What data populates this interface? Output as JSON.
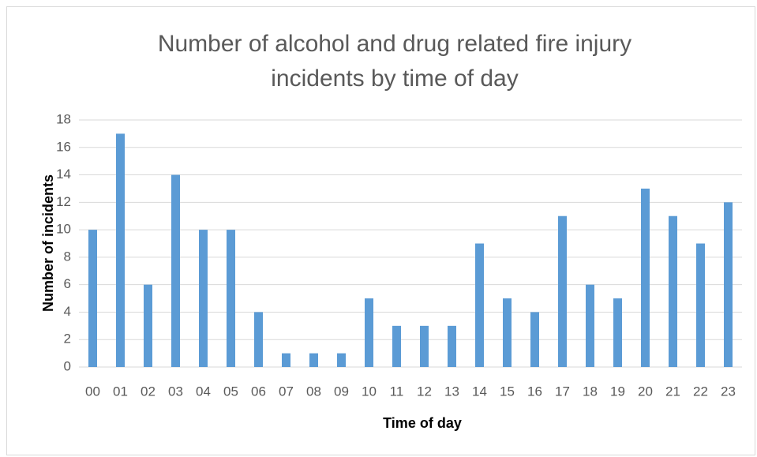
{
  "chart_data": {
    "type": "bar",
    "title": "Number of alcohol and drug related fire injury incidents by time of day",
    "x_label": "Time of day",
    "y_label": "Number of incidents",
    "categories": [
      "00",
      "01",
      "02",
      "03",
      "04",
      "05",
      "06",
      "07",
      "08",
      "09",
      "10",
      "11",
      "12",
      "13",
      "14",
      "15",
      "16",
      "17",
      "18",
      "19",
      "20",
      "21",
      "22",
      "23"
    ],
    "values": [
      10,
      17,
      6,
      14,
      10,
      10,
      4,
      1,
      1,
      1,
      5,
      3,
      3,
      3,
      9,
      5,
      4,
      11,
      6,
      5,
      13,
      11,
      9,
      12
    ],
    "color": "#5b9bd5",
    "ylim": [
      0,
      18
    ],
    "yticks": [
      0,
      2,
      4,
      6,
      8,
      10,
      12,
      14,
      16,
      18
    ],
    "grid": true
  }
}
